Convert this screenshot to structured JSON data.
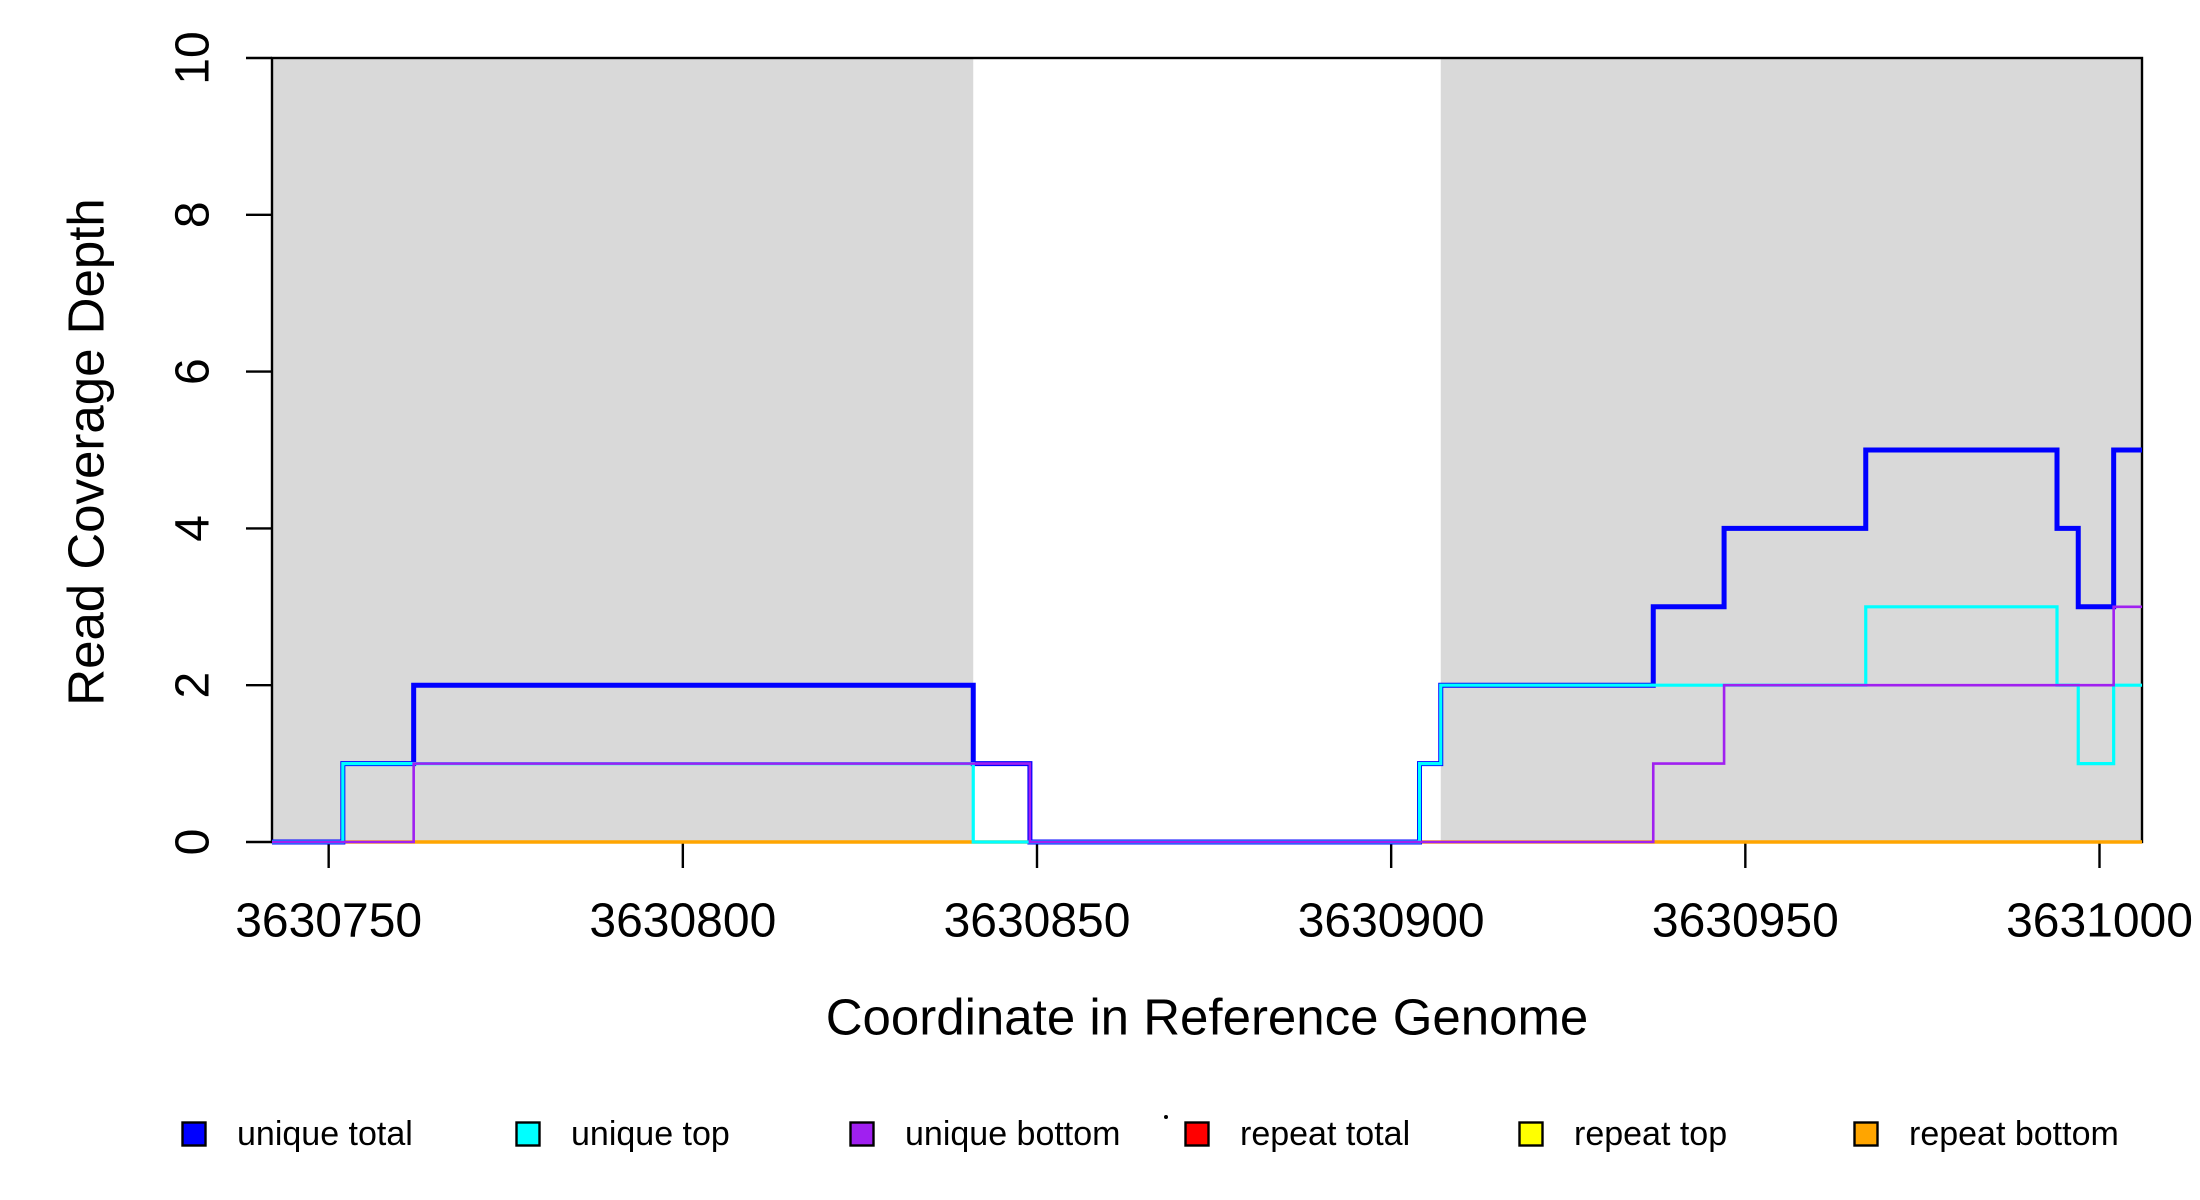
{
  "chart_data": {
    "type": "line",
    "subtype": "step-coverage",
    "title": "",
    "xlabel": "Coordinate in Reference Genome",
    "ylabel": "Read Coverage Depth",
    "xlim": [
      3630742,
      3631006
    ],
    "ylim": [
      0,
      10
    ],
    "xticks": {
      "values": [
        3630750,
        3630800,
        3630850,
        3630900,
        3630950,
        3631000
      ],
      "labels": [
        "3630750",
        "3630800",
        "3630850",
        "3630900",
        "3630950",
        "3631000"
      ]
    },
    "yticks": {
      "values": [
        0,
        2,
        4,
        6,
        8,
        10
      ],
      "labels": [
        "0",
        "2",
        "4",
        "6",
        "8",
        "10"
      ]
    },
    "grid": false,
    "box": true,
    "background_color": "#ffffff",
    "shaded_regions": [
      {
        "name": "shaded-region-1",
        "start": 3630742,
        "end": 3630841,
        "color": "#d9d9d9"
      },
      {
        "name": "shaded-region-2",
        "start": 3630907,
        "end": 3631006,
        "color": "#d9d9d9"
      }
    ],
    "series": [
      {
        "name": "unique total",
        "color": "#0000ff",
        "line_width": 5.0,
        "steps": [
          [
            3630742,
            0
          ],
          [
            3630752,
            1
          ],
          [
            3630762,
            2
          ],
          [
            3630841,
            1
          ],
          [
            3630849,
            0
          ],
          [
            3630904,
            1
          ],
          [
            3630907,
            2
          ],
          [
            3630937,
            3
          ],
          [
            3630947,
            4
          ],
          [
            3630967,
            5
          ],
          [
            3630994,
            4
          ],
          [
            3630997,
            3
          ],
          [
            3631002,
            5
          ]
        ]
      },
      {
        "name": "unique top",
        "color": "#00ffff",
        "line_width": 3.2,
        "steps": [
          [
            3630742,
            0
          ],
          [
            3630752,
            1
          ],
          [
            3630841,
            0
          ],
          [
            3630904,
            1
          ],
          [
            3630907,
            2
          ],
          [
            3630967,
            3
          ],
          [
            3630994,
            2
          ],
          [
            3630997,
            1
          ],
          [
            3631002,
            2
          ]
        ]
      },
      {
        "name": "unique bottom",
        "color": "#a020f0",
        "line_width": 2.6,
        "steps": [
          [
            3630742,
            0
          ],
          [
            3630762,
            1
          ],
          [
            3630849,
            0
          ],
          [
            3630937,
            1
          ],
          [
            3630947,
            2
          ],
          [
            3631002,
            3
          ]
        ]
      },
      {
        "name": "repeat total",
        "color": "#ff0000",
        "line_width": 3.0,
        "steps": [
          [
            3630742,
            0
          ]
        ]
      },
      {
        "name": "repeat top",
        "color": "#ffff00",
        "line_width": 3.0,
        "steps": [
          [
            3630742,
            0
          ]
        ]
      },
      {
        "name": "repeat bottom",
        "color": "#ffa500",
        "line_width": 3.4,
        "steps": [
          [
            3630742,
            0
          ]
        ]
      }
    ],
    "draw_order": [
      3,
      4,
      5,
      0,
      1,
      2
    ],
    "legend": {
      "position": "bottom",
      "items": [
        {
          "label": "unique total",
          "color": "#0000ff"
        },
        {
          "label": "unique top",
          "color": "#00ffff"
        },
        {
          "label": "unique bottom",
          "color": "#a020f0"
        },
        {
          "label": "repeat total",
          "color": "#ff0000"
        },
        {
          "label": "repeat top",
          "color": "#ffff00"
        },
        {
          "label": "repeat bottom",
          "color": "#ffa500"
        }
      ]
    },
    "axis_color": "#000000",
    "tick_label_color": "#000000"
  }
}
